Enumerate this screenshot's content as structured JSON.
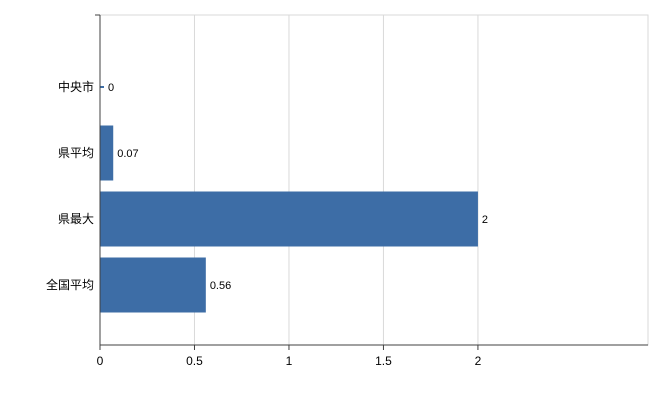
{
  "chart_data": {
    "type": "bar",
    "orientation": "horizontal",
    "title": "",
    "xlabel": "",
    "ylabel": "",
    "categories": [
      "中央市",
      "県平均",
      "県最大",
      "全国平均"
    ],
    "values": [
      0,
      0.07,
      2,
      0.56
    ],
    "value_labels": [
      "0",
      "0.07",
      "2",
      "0.56"
    ],
    "xticks": [
      0,
      0.5,
      1,
      1.5,
      2
    ],
    "xtick_labels": [
      "0",
      "0.5",
      "1",
      "1.5",
      "2"
    ],
    "xlim": [
      0,
      2.9
    ],
    "grid": true,
    "legend": false,
    "bar_color": "#3d6da6",
    "grid_color": "#d9d9d9",
    "axis_color": "#404040",
    "text_color": "#000000",
    "background_color": "#ffffff"
  }
}
